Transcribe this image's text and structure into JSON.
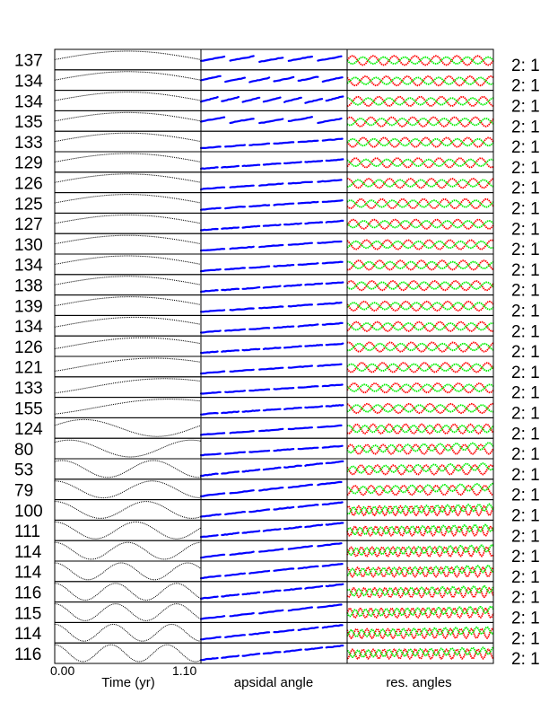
{
  "chart_data": {
    "type": "line",
    "panel_count": 30,
    "row_labels": [
      "137",
      "134",
      "134",
      "135",
      "133",
      "129",
      "126",
      "125",
      "127",
      "130",
      "134",
      "138",
      "139",
      "134",
      "126",
      "121",
      "133",
      "155",
      "124",
      "80",
      "53",
      "79",
      "100",
      "111",
      "114",
      "114",
      "116",
      "115",
      "114",
      "116"
    ],
    "right_labels": [
      "2: 1",
      "2: 1",
      "2: 1",
      "2: 1",
      "2: 1",
      "2: 1",
      "2: 1",
      "2: 1",
      "2: 1",
      "2: 1",
      "2: 1",
      "2: 1",
      "2: 1",
      "2: 1",
      "2: 1",
      "2: 1",
      "2: 1",
      "2: 1",
      "2: 1",
      "2: 1",
      "2: 1",
      "2: 1",
      "2: 1",
      "2: 1",
      "2: 1",
      "2: 1",
      "2: 1",
      "2: 1",
      "2: 1",
      "2: 1"
    ],
    "x_range": [
      0.0,
      1.1
    ],
    "x_ticks": [
      "0.00",
      "1.10"
    ],
    "columns": [
      {
        "xlabel": "Time (yr)",
        "series_colors": [
          "#000000"
        ]
      },
      {
        "xlabel": "apsidal angle",
        "series_colors": [
          "#0000ff"
        ]
      },
      {
        "xlabel": "res. angles",
        "series_colors": [
          "#ff0000",
          "#00ee00"
        ]
      }
    ],
    "column1_cycles": [
      0.5,
      0.5,
      0.5,
      0.5,
      0.5,
      0.5,
      0.5,
      0.5,
      0.5,
      0.5,
      0.5,
      0.5,
      0.5,
      0.5,
      0.5,
      0.5,
      0.5,
      0.5,
      1.0,
      1.2,
      1.6,
      1.5,
      1.6,
      1.8,
      2.0,
      2.2,
      2.4,
      2.4,
      2.5,
      2.6
    ],
    "column1_phase_peak": [
      0.5,
      0.5,
      0.5,
      0.5,
      0.5,
      0.5,
      0.5,
      0.5,
      0.5,
      0.5,
      0.5,
      0.5,
      0.52,
      0.55,
      0.6,
      0.68,
      0.75,
      0.78,
      0.2,
      0.1,
      0.05,
      0.0,
      0.0,
      0.0,
      0.0,
      0.0,
      0.0,
      0.0,
      0.0,
      0.0
    ]
  }
}
